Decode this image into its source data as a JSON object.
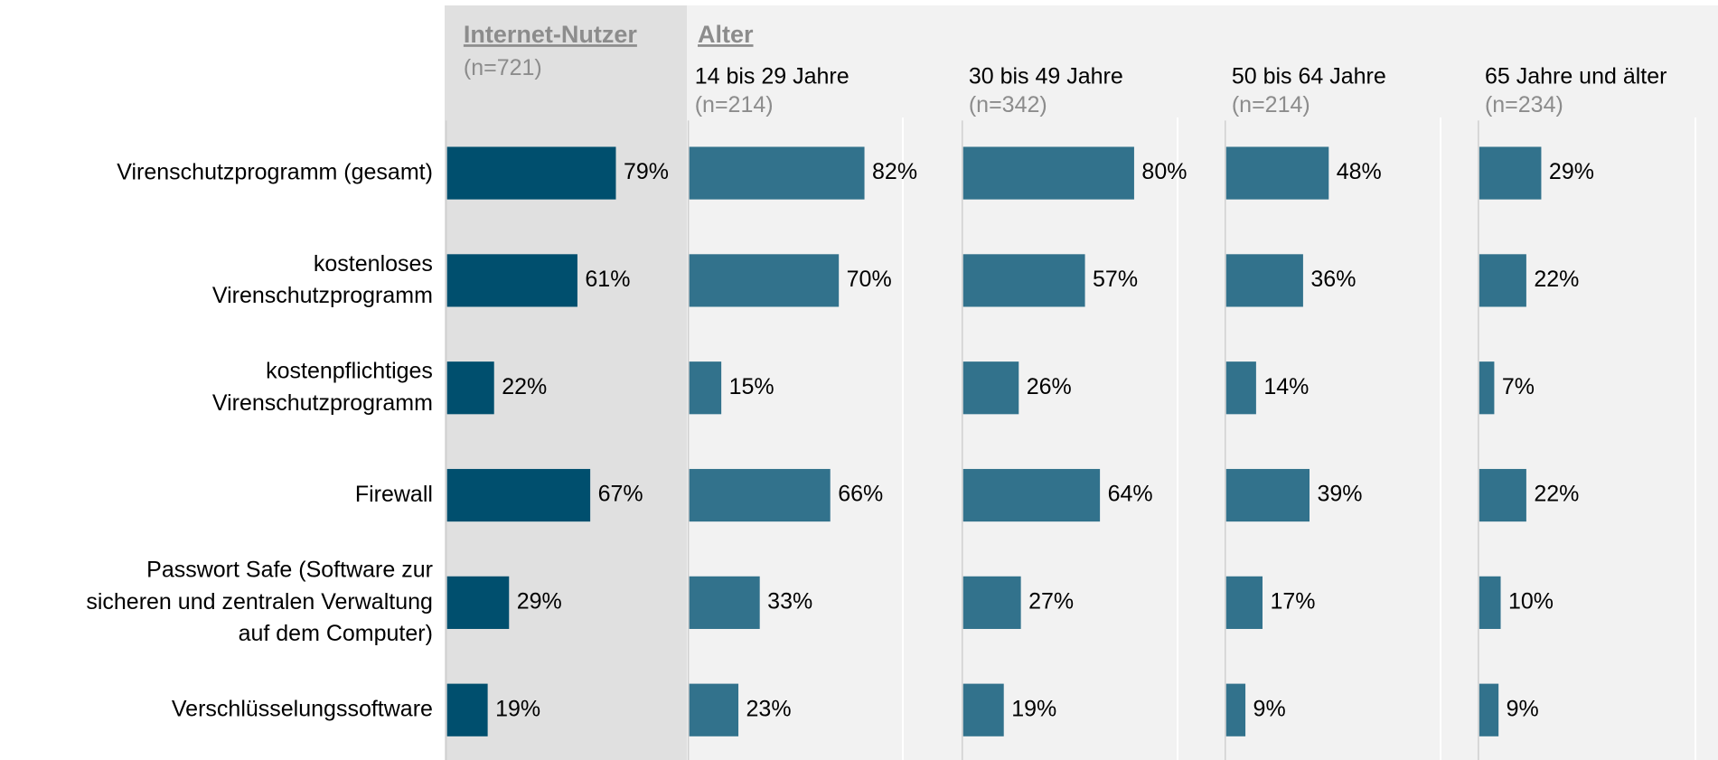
{
  "chart_data": {
    "type": "bar",
    "orientation": "horizontal",
    "group_label": "Alter",
    "categories": [
      "Virenschutzprogramm (gesamt)",
      "kostenloses\nVirenschutzprogramm",
      "kostenpflichtiges\nVirenschutzprogramm",
      "Firewall",
      "Passwort Safe (Software zur\nsicheren und zentralen Verwaltung\nauf dem Computer)",
      "Verschlüsselungssoftware"
    ],
    "xlim": [
      0,
      100
    ],
    "series": [
      {
        "name": "Internet-Nutzer",
        "n": "(n=721)",
        "color": "#004f6e",
        "values": [
          79,
          61,
          22,
          67,
          29,
          19
        ],
        "value_labels": [
          "79%",
          "61%",
          "22%",
          "67%",
          "29%",
          "19%"
        ]
      },
      {
        "name": "14 bis 29 Jahre",
        "n": "(n=214)",
        "color": "#32728c",
        "values": [
          82,
          70,
          15,
          66,
          33,
          23
        ],
        "value_labels": [
          "82%",
          "70%",
          "15%",
          "66%",
          "33%",
          "23%"
        ]
      },
      {
        "name": "30 bis 49 Jahre",
        "n": "(n=342)",
        "color": "#32728c",
        "values": [
          80,
          57,
          26,
          64,
          27,
          19
        ],
        "value_labels": [
          "80%",
          "57%",
          "26%",
          "64%",
          "27%",
          "19%"
        ]
      },
      {
        "name": "50 bis 64 Jahre",
        "n": "(n=214)",
        "color": "#32728c",
        "values": [
          48,
          36,
          14,
          39,
          17,
          9
        ],
        "value_labels": [
          "48%",
          "36%",
          "14%",
          "39%",
          "17%",
          "9%"
        ]
      },
      {
        "name": "65 Jahre und älter",
        "n": "(n=234)",
        "color": "#32728c",
        "values": [
          29,
          22,
          7,
          22,
          10,
          9
        ],
        "value_labels": [
          "29%",
          "22%",
          "7%",
          "22%",
          "10%",
          "9%"
        ]
      }
    ]
  }
}
